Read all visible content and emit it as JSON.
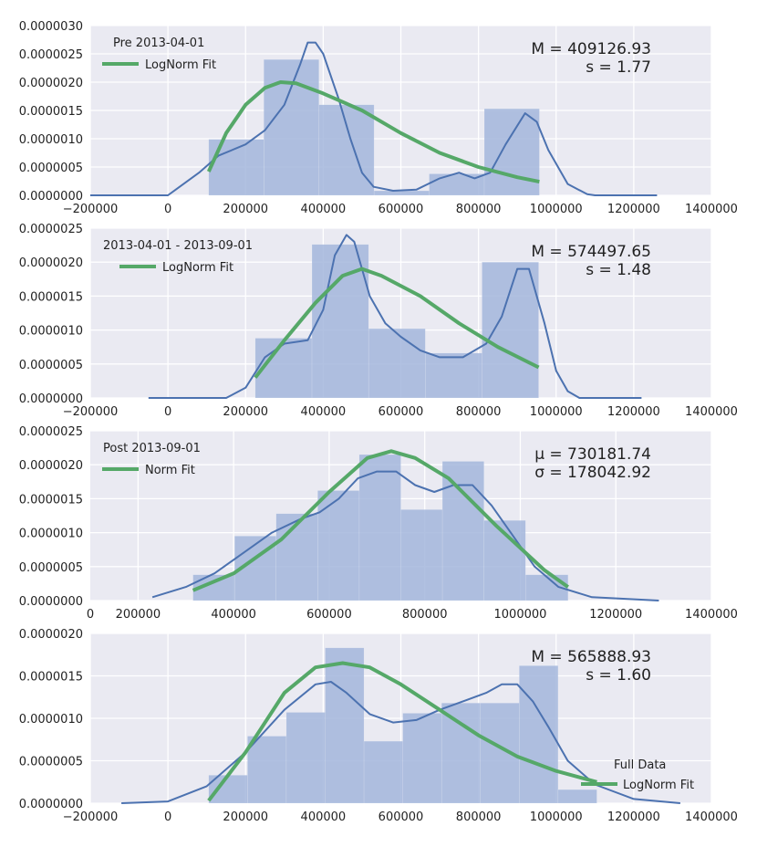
{
  "colors": {
    "background": "#eaeaf2",
    "grid": "#ffffff",
    "hist": "#a3b6dc",
    "kde": "#4c72b0",
    "fit": "#55a868"
  },
  "chart_data": [
    {
      "type": "histogram",
      "title": "Pre 2013-04-01",
      "legend_label": "LogNorm Fit",
      "legend_position": "top-left",
      "stat_lines": [
        "M = 409126.93",
        "s = 1.77"
      ],
      "xlim": [
        -200000,
        1400000
      ],
      "ylim": [
        0,
        3e-06
      ],
      "xticks": [
        -200000,
        0,
        200000,
        400000,
        600000,
        800000,
        1000000,
        1200000,
        1400000
      ],
      "xtick_labels": [
        "−200000",
        "0",
        "200000",
        "400000",
        "600000",
        "800000",
        "1000000",
        "1200000",
        "1400000"
      ],
      "yticks": [
        0,
        5e-07,
        1e-06,
        1.5e-06,
        2e-06,
        2.5e-06,
        3e-06
      ],
      "ytick_labels": [
        "0.0000000",
        "0.0000005",
        "0.0000010",
        "0.0000015",
        "0.0000020",
        "0.0000025",
        "0.0000030"
      ],
      "bins": [
        {
          "x0": 105000,
          "x1": 247000,
          "y": 9.9e-07
        },
        {
          "x0": 247000,
          "x1": 389000,
          "y": 2.4e-06
        },
        {
          "x0": 389000,
          "x1": 531000,
          "y": 1.6e-06
        },
        {
          "x0": 531000,
          "x1": 673000,
          "y": 8e-08
        },
        {
          "x0": 673000,
          "x1": 815000,
          "y": 3.8e-07
        },
        {
          "x0": 815000,
          "x1": 957000,
          "y": 1.53e-06
        }
      ],
      "kde": [
        [
          -200000,
          0
        ],
        [
          0,
          0
        ],
        [
          20000,
          1e-07
        ],
        [
          80000,
          4e-07
        ],
        [
          130000,
          7e-07
        ],
        [
          200000,
          9e-07
        ],
        [
          250000,
          1.15e-06
        ],
        [
          300000,
          1.6e-06
        ],
        [
          340000,
          2.3e-06
        ],
        [
          360000,
          2.7e-06
        ],
        [
          380000,
          2.7e-06
        ],
        [
          400000,
          2.5e-06
        ],
        [
          440000,
          1.7e-06
        ],
        [
          470000,
          1e-06
        ],
        [
          500000,
          4e-07
        ],
        [
          530000,
          1.5e-07
        ],
        [
          580000,
          8e-08
        ],
        [
          640000,
          1e-07
        ],
        [
          700000,
          3e-07
        ],
        [
          750000,
          4e-07
        ],
        [
          790000,
          3e-07
        ],
        [
          830000,
          4e-07
        ],
        [
          870000,
          9e-07
        ],
        [
          920000,
          1.45e-06
        ],
        [
          950000,
          1.3e-06
        ],
        [
          980000,
          8e-07
        ],
        [
          1030000,
          2e-07
        ],
        [
          1080000,
          2e-08
        ],
        [
          1100000,
          0
        ],
        [
          1260000,
          0
        ]
      ],
      "fit": [
        [
          105000,
          4.2e-07
        ],
        [
          150000,
          1.1e-06
        ],
        [
          200000,
          1.6e-06
        ],
        [
          250000,
          1.9e-06
        ],
        [
          290000,
          2e-06
        ],
        [
          330000,
          1.98e-06
        ],
        [
          400000,
          1.8e-06
        ],
        [
          500000,
          1.5e-06
        ],
        [
          600000,
          1.1e-06
        ],
        [
          700000,
          7.5e-07
        ],
        [
          800000,
          5e-07
        ],
        [
          900000,
          3.2e-07
        ],
        [
          957000,
          2.4e-07
        ]
      ]
    },
    {
      "type": "histogram",
      "title": "2013-04-01 - 2013-09-01",
      "legend_label": "LogNorm Fit",
      "legend_position": "top-left",
      "stat_lines": [
        "M = 574497.65",
        "s = 1.48"
      ],
      "xlim": [
        -200000,
        1400000
      ],
      "ylim": [
        0,
        2.5e-06
      ],
      "xticks": [
        -200000,
        0,
        200000,
        400000,
        600000,
        800000,
        1000000,
        1200000,
        1400000
      ],
      "xtick_labels": [
        "−200000",
        "0",
        "200000",
        "400000",
        "600000",
        "800000",
        "1000000",
        "1200000",
        "1400000"
      ],
      "yticks": [
        0,
        5e-07,
        1e-06,
        1.5e-06,
        2e-06,
        2.5e-06
      ],
      "ytick_labels": [
        "0.0000000",
        "0.0000005",
        "0.0000010",
        "0.0000015",
        "0.0000020",
        "0.0000025"
      ],
      "bins": [
        {
          "x0": 225000,
          "x1": 371000,
          "y": 8.8e-07
        },
        {
          "x0": 371000,
          "x1": 517000,
          "y": 2.26e-06
        },
        {
          "x0": 517000,
          "x1": 663000,
          "y": 1.02e-06
        },
        {
          "x0": 663000,
          "x1": 809000,
          "y": 6.6e-07
        },
        {
          "x0": 809000,
          "x1": 955000,
          "y": 2e-06
        }
      ],
      "kde": [
        [
          -50000,
          0
        ],
        [
          150000,
          0
        ],
        [
          200000,
          1.5e-07
        ],
        [
          250000,
          6e-07
        ],
        [
          300000,
          8e-07
        ],
        [
          360000,
          8.5e-07
        ],
        [
          400000,
          1.3e-06
        ],
        [
          430000,
          2.1e-06
        ],
        [
          460000,
          2.4e-06
        ],
        [
          480000,
          2.3e-06
        ],
        [
          520000,
          1.5e-06
        ],
        [
          560000,
          1.1e-06
        ],
        [
          600000,
          9e-07
        ],
        [
          650000,
          7e-07
        ],
        [
          700000,
          6e-07
        ],
        [
          760000,
          6e-07
        ],
        [
          820000,
          8e-07
        ],
        [
          860000,
          1.2e-06
        ],
        [
          900000,
          1.9e-06
        ],
        [
          930000,
          1.9e-06
        ],
        [
          970000,
          1.1e-06
        ],
        [
          1000000,
          4e-07
        ],
        [
          1030000,
          1e-07
        ],
        [
          1060000,
          0
        ],
        [
          1220000,
          0
        ]
      ],
      "fit": [
        [
          225000,
          3e-07
        ],
        [
          300000,
          8.5e-07
        ],
        [
          380000,
          1.4e-06
        ],
        [
          450000,
          1.8e-06
        ],
        [
          500000,
          1.9e-06
        ],
        [
          550000,
          1.8e-06
        ],
        [
          650000,
          1.5e-06
        ],
        [
          750000,
          1.1e-06
        ],
        [
          850000,
          7.5e-07
        ],
        [
          955000,
          4.5e-07
        ]
      ]
    },
    {
      "type": "histogram",
      "title": "Post 2013-09-01",
      "legend_label": "Norm Fit",
      "legend_position": "top-left",
      "stat_lines": [
        "μ = 730181.74",
        "σ = 178042.92"
      ],
      "xlim": [
        100000,
        1400000
      ],
      "ylim": [
        0,
        2.5e-06
      ],
      "xticks": [
        200000,
        400000,
        600000,
        800000,
        1000000,
        1200000,
        1400000
      ],
      "xtick_labels": [
        "200000",
        "400000",
        "600000",
        "800000",
        "1000000",
        "1200000",
        "1400000"
      ],
      "extra_xtick_label": "0",
      "yticks": [
        0,
        5e-07,
        1e-06,
        1.5e-06,
        2e-06,
        2.5e-06
      ],
      "ytick_labels": [
        "0.0000000",
        "0.0000005",
        "0.0000010",
        "0.0000015",
        "0.0000020",
        "0.0000025"
      ],
      "bins": [
        {
          "x0": 315000,
          "x1": 402000,
          "y": 3.8e-07
        },
        {
          "x0": 402000,
          "x1": 489000,
          "y": 9.5e-07
        },
        {
          "x0": 489000,
          "x1": 576000,
          "y": 1.28e-06
        },
        {
          "x0": 576000,
          "x1": 663000,
          "y": 1.62e-06
        },
        {
          "x0": 663000,
          "x1": 750000,
          "y": 2.15e-06
        },
        {
          "x0": 750000,
          "x1": 837000,
          "y": 1.34e-06
        },
        {
          "x0": 837000,
          "x1": 924000,
          "y": 2.05e-06
        },
        {
          "x0": 924000,
          "x1": 1011000,
          "y": 1.18e-06
        },
        {
          "x0": 1011000,
          "x1": 1100000,
          "y": 3.8e-07
        }
      ],
      "kde": [
        [
          230000,
          5e-08
        ],
        [
          300000,
          2e-07
        ],
        [
          360000,
          4e-07
        ],
        [
          420000,
          7e-07
        ],
        [
          480000,
          1e-06
        ],
        [
          540000,
          1.2e-06
        ],
        [
          580000,
          1.3e-06
        ],
        [
          620000,
          1.5e-06
        ],
        [
          660000,
          1.8e-06
        ],
        [
          700000,
          1.9e-06
        ],
        [
          740000,
          1.9e-06
        ],
        [
          780000,
          1.7e-06
        ],
        [
          820000,
          1.6e-06
        ],
        [
          860000,
          1.7e-06
        ],
        [
          900000,
          1.7e-06
        ],
        [
          940000,
          1.4e-06
        ],
        [
          980000,
          1e-06
        ],
        [
          1030000,
          5e-07
        ],
        [
          1080000,
          2e-07
        ],
        [
          1150000,
          5e-08
        ],
        [
          1290000,
          0
        ]
      ],
      "fit": [
        [
          315000,
          1.5e-07
        ],
        [
          400000,
          4e-07
        ],
        [
          500000,
          9e-07
        ],
        [
          600000,
          1.6e-06
        ],
        [
          680000,
          2.1e-06
        ],
        [
          730000,
          2.2e-06
        ],
        [
          780000,
          2.1e-06
        ],
        [
          850000,
          1.8e-06
        ],
        [
          950000,
          1.1e-06
        ],
        [
          1050000,
          4.5e-07
        ],
        [
          1100000,
          2e-07
        ]
      ]
    },
    {
      "type": "histogram",
      "title": "Full Data",
      "legend_label": "LogNorm Fit",
      "legend_position": "bottom-right",
      "stat_lines": [
        "M = 565888.93",
        "s = 1.60"
      ],
      "xlim": [
        -200000,
        1400000
      ],
      "ylim": [
        0,
        2e-06
      ],
      "xticks": [
        -200000,
        0,
        200000,
        400000,
        600000,
        800000,
        1000000,
        1200000,
        1400000
      ],
      "xtick_labels": [
        "−200000",
        "0",
        "200000",
        "400000",
        "600000",
        "800000",
        "1000000",
        "1200000",
        "1400000"
      ],
      "yticks": [
        0,
        5e-07,
        1e-06,
        1.5e-06,
        2e-06
      ],
      "ytick_labels": [
        "0.0000000",
        "0.0000005",
        "0.0000010",
        "0.0000015",
        "0.0000020"
      ],
      "bins": [
        {
          "x0": 105000,
          "x1": 205000,
          "y": 3.3e-07
        },
        {
          "x0": 205000,
          "x1": 305000,
          "y": 7.9e-07
        },
        {
          "x0": 305000,
          "x1": 405000,
          "y": 1.07e-06
        },
        {
          "x0": 405000,
          "x1": 505000,
          "y": 1.83e-06
        },
        {
          "x0": 505000,
          "x1": 605000,
          "y": 7.3e-07
        },
        {
          "x0": 605000,
          "x1": 705000,
          "y": 1.06e-06
        },
        {
          "x0": 705000,
          "x1": 805000,
          "y": 1.18e-06
        },
        {
          "x0": 805000,
          "x1": 905000,
          "y": 1.18e-06
        },
        {
          "x0": 905000,
          "x1": 1005000,
          "y": 1.62e-06
        },
        {
          "x0": 1005000,
          "x1": 1105000,
          "y": 1.6e-07
        }
      ],
      "kde": [
        [
          -120000,
          0
        ],
        [
          0,
          2e-08
        ],
        [
          100000,
          2e-07
        ],
        [
          200000,
          6e-07
        ],
        [
          300000,
          1.1e-06
        ],
        [
          380000,
          1.4e-06
        ],
        [
          420000,
          1.43e-06
        ],
        [
          460000,
          1.3e-06
        ],
        [
          520000,
          1.05e-06
        ],
        [
          580000,
          9.5e-07
        ],
        [
          640000,
          9.8e-07
        ],
        [
          700000,
          1.1e-06
        ],
        [
          760000,
          1.2e-06
        ],
        [
          820000,
          1.3e-06
        ],
        [
          860000,
          1.4e-06
        ],
        [
          900000,
          1.4e-06
        ],
        [
          940000,
          1.2e-06
        ],
        [
          980000,
          9e-07
        ],
        [
          1030000,
          5e-07
        ],
        [
          1100000,
          2.2e-07
        ],
        [
          1200000,
          5e-08
        ],
        [
          1320000,
          0
        ]
      ],
      "fit": [
        [
          105000,
          3e-08
        ],
        [
          200000,
          6e-07
        ],
        [
          300000,
          1.3e-06
        ],
        [
          380000,
          1.6e-06
        ],
        [
          450000,
          1.65e-06
        ],
        [
          520000,
          1.6e-06
        ],
        [
          600000,
          1.4e-06
        ],
        [
          700000,
          1.1e-06
        ],
        [
          800000,
          8e-07
        ],
        [
          900000,
          5.5e-07
        ],
        [
          1000000,
          3.8e-07
        ],
        [
          1105000,
          2.5e-07
        ]
      ]
    }
  ]
}
